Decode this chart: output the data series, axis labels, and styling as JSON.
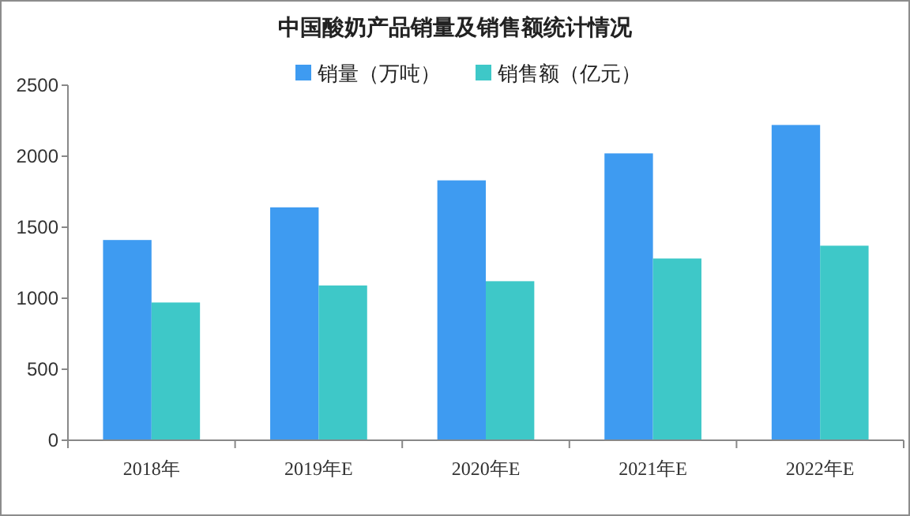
{
  "chart_data": {
    "type": "bar",
    "title": "中国酸奶产品销量及销售额统计情况",
    "categories": [
      "2018年",
      "2019年E",
      "2020年E",
      "2021年E",
      "2022年E"
    ],
    "series": [
      {
        "name": "销量（万吨）",
        "color": "#3e9bf1",
        "values": [
          1410,
          1640,
          1830,
          2020,
          2220
        ]
      },
      {
        "name": "销售额（亿元）",
        "color": "#3ec8c8",
        "values": [
          970,
          1090,
          1120,
          1280,
          1370
        ]
      }
    ],
    "ylim": [
      0,
      2500
    ],
    "yticks": [
      0,
      500,
      1000,
      1500,
      2000,
      2500
    ],
    "grid": false,
    "legend": "top"
  }
}
